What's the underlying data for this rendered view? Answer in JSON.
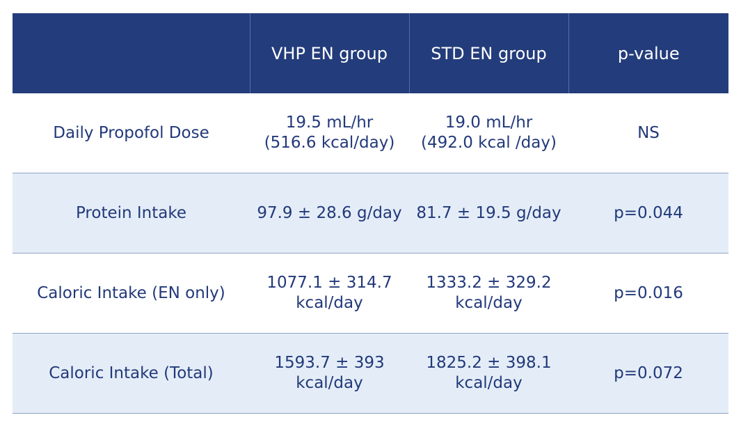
{
  "table": {
    "headers": [
      "",
      "VHP EN group",
      "STD EN group",
      "p-value"
    ],
    "rows": [
      {
        "label": "Daily Propofol Dose",
        "vhp": [
          "19.5 mL/hr",
          "(516.6 kcal/day)"
        ],
        "std": [
          "19.0 mL/hr",
          "(492.0 kcal /day)"
        ],
        "p": "NS"
      },
      {
        "label": "Protein Intake",
        "vhp": [
          "97.9 ± 28.6 g/day"
        ],
        "std": [
          "81.7 ± 19.5 g/day"
        ],
        "p": "p=0.044"
      },
      {
        "label": "Caloric Intake (EN only)",
        "vhp": [
          "1077.1 ± 314.7",
          "kcal/day"
        ],
        "std": [
          "1333.2 ± 329.2",
          "kcal/day"
        ],
        "p": "p=0.016"
      },
      {
        "label": "Caloric Intake (Total)",
        "vhp": [
          "1593.7 ± 393",
          "kcal/day"
        ],
        "std": [
          "1825.2 ± 398.1",
          "kcal/day"
        ],
        "p": "p=0.072"
      }
    ]
  }
}
